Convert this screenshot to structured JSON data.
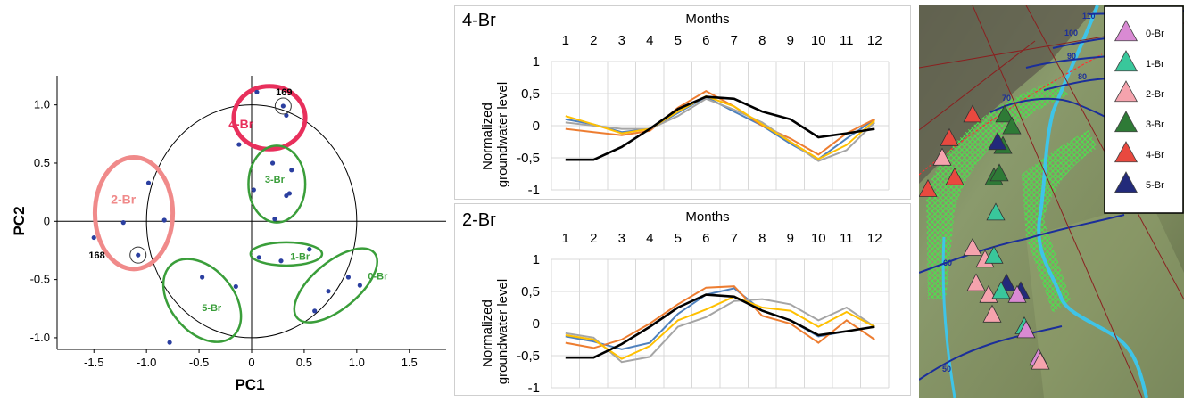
{
  "chart_data": [
    {
      "type": "scatter",
      "title": "",
      "xlabel": "PC1",
      "ylabel": "PC2",
      "xlim": [
        -1.85,
        1.85
      ],
      "ylim": [
        -1.1,
        1.25
      ],
      "x_ticks": [
        -1.5,
        -1.0,
        -0.5,
        0,
        0.5,
        1.0,
        1.5
      ],
      "x_tick_labels": [
        "-1.5",
        "-1.0",
        "-0.5",
        "0",
        "0.5",
        "1.0",
        "1.5"
      ],
      "y_ticks": [
        -1.0,
        -0.5,
        0,
        0.5,
        1.0
      ],
      "y_tick_labels": [
        "-1.0",
        "-0.5",
        "0",
        "0.5",
        "1.0"
      ],
      "unit_circle_radius": 1.0,
      "points": [
        {
          "x": 0.05,
          "y": 1.11
        },
        {
          "x": 0.3,
          "y": 0.99
        },
        {
          "x": 0.33,
          "y": 0.91
        },
        {
          "x": -0.12,
          "y": 0.66
        },
        {
          "x": 0.2,
          "y": 0.5
        },
        {
          "x": 0.38,
          "y": 0.44
        },
        {
          "x": 0.02,
          "y": 0.27
        },
        {
          "x": 0.33,
          "y": 0.22
        },
        {
          "x": 0.36,
          "y": 0.24
        },
        {
          "x": 0.22,
          "y": 0.02
        },
        {
          "x": -1.5,
          "y": -0.14
        },
        {
          "x": -1.22,
          "y": -0.01
        },
        {
          "x": -0.98,
          "y": 0.33
        },
        {
          "x": -0.83,
          "y": 0.01
        },
        {
          "x": -1.08,
          "y": -0.29
        },
        {
          "x": 0.07,
          "y": -0.31
        },
        {
          "x": 0.28,
          "y": -0.34
        },
        {
          "x": 0.55,
          "y": -0.24
        },
        {
          "x": 0.92,
          "y": -0.48
        },
        {
          "x": 1.03,
          "y": -0.55
        },
        {
          "x": 0.73,
          "y": -0.6
        },
        {
          "x": 0.6,
          "y": -0.77
        },
        {
          "x": -0.47,
          "y": -0.48
        },
        {
          "x": -0.15,
          "y": -0.56
        },
        {
          "x": -0.78,
          "y": -1.04
        }
      ],
      "groups": [
        {
          "name": "4-Br",
          "color": "#e8305c",
          "cx": 0.17,
          "cy": 0.89,
          "rx": 0.34,
          "ry": 0.27,
          "rot": 0
        },
        {
          "name": "3-Br",
          "color": "#3a9e3a",
          "cx": 0.24,
          "cy": 0.32,
          "rx": 0.27,
          "ry": 0.33,
          "rot": 0
        },
        {
          "name": "2-Br",
          "color": "#f08a8a",
          "cx": -1.12,
          "cy": 0.07,
          "rx": 0.37,
          "ry": 0.48,
          "rot": 0
        },
        {
          "name": "1-Br",
          "color": "#3a9e3a",
          "cx": 0.33,
          "cy": -0.28,
          "rx": 0.34,
          "ry": 0.1,
          "rot": 0
        },
        {
          "name": "0-Br",
          "color": "#3a9e3a",
          "cx": 0.8,
          "cy": -0.55,
          "rx": 0.48,
          "ry": 0.2,
          "rot": 40
        },
        {
          "name": "5-Br",
          "color": "#3a9e3a",
          "cx": -0.47,
          "cy": -0.68,
          "rx": 0.45,
          "ry": 0.27,
          "rot": -50
        }
      ],
      "annotations": [
        "169",
        "168"
      ]
    },
    {
      "type": "line",
      "title": "4-Br",
      "xlabel": "Months",
      "ylabel": "Normalized groundwater level",
      "x": [
        1,
        2,
        3,
        4,
        5,
        6,
        7,
        8,
        9,
        10,
        11,
        12
      ],
      "ylim": [
        -1,
        1
      ],
      "y_tick_labels": [
        "1",
        "0,5",
        "0",
        "-0,5",
        "-1"
      ],
      "series": [
        {
          "color": "#4f81bd",
          "values": [
            0.1,
            0.02,
            -0.1,
            -0.05,
            0.2,
            0.45,
            0.22,
            0.0,
            -0.28,
            -0.52,
            -0.2,
            0.1
          ]
        },
        {
          "color": "#ed7d31",
          "values": [
            -0.05,
            -0.1,
            -0.15,
            -0.08,
            0.28,
            0.54,
            0.3,
            0.0,
            -0.2,
            -0.45,
            -0.12,
            0.1
          ]
        },
        {
          "color": "#a5a5a5",
          "values": [
            0.05,
            0.0,
            -0.05,
            -0.05,
            0.15,
            0.42,
            0.25,
            0.05,
            -0.25,
            -0.55,
            -0.38,
            0.05
          ]
        },
        {
          "color": "#ffc000",
          "values": [
            0.15,
            0.02,
            -0.12,
            -0.05,
            0.22,
            0.46,
            0.3,
            0.02,
            -0.25,
            -0.52,
            -0.3,
            0.08
          ]
        },
        {
          "color": "#000000",
          "values": [
            -0.53,
            -0.53,
            -0.33,
            -0.05,
            0.26,
            0.45,
            0.42,
            0.22,
            0.1,
            -0.18,
            -0.12,
            -0.05
          ]
        }
      ]
    },
    {
      "type": "line",
      "title": "2-Br",
      "xlabel": "Months",
      "ylabel": "Normalized groundwater level",
      "x": [
        1,
        2,
        3,
        4,
        5,
        6,
        7,
        8,
        9,
        10,
        11,
        12
      ],
      "ylim": [
        -1,
        1
      ],
      "y_tick_labels": [
        "1",
        "0,5",
        "0",
        "-0,5",
        "-1"
      ],
      "series": [
        {
          "color": "#4f81bd",
          "values": [
            -0.2,
            -0.28,
            -0.4,
            -0.3,
            0.15,
            0.45,
            0.55,
            0.2,
            0.05,
            -0.2,
            -0.12,
            -0.05
          ]
        },
        {
          "color": "#ed7d31",
          "values": [
            -0.3,
            -0.38,
            -0.25,
            0.0,
            0.3,
            0.56,
            0.58,
            0.12,
            0.0,
            -0.3,
            0.05,
            -0.25
          ]
        },
        {
          "color": "#a5a5a5",
          "values": [
            -0.15,
            -0.22,
            -0.6,
            -0.52,
            -0.05,
            0.1,
            0.35,
            0.38,
            0.3,
            0.05,
            0.25,
            -0.05
          ]
        },
        {
          "color": "#ffc000",
          "values": [
            -0.18,
            -0.25,
            -0.55,
            -0.35,
            0.05,
            0.22,
            0.42,
            0.25,
            0.2,
            -0.05,
            0.18,
            -0.05
          ]
        },
        {
          "color": "#000000",
          "values": [
            -0.53,
            -0.53,
            -0.32,
            -0.05,
            0.25,
            0.45,
            0.42,
            0.2,
            0.05,
            -0.18,
            -0.12,
            -0.05
          ]
        }
      ]
    }
  ],
  "map": {
    "contour_labels": [
      "110",
      "100",
      "90",
      "80",
      "70",
      "60",
      "50"
    ],
    "legend": [
      {
        "label": "0-Br",
        "color": "#d98ad3"
      },
      {
        "label": "1-Br",
        "color": "#39c79b"
      },
      {
        "label": "2-Br",
        "color": "#f5a3ad"
      },
      {
        "label": "3-Br",
        "color": "#2e7a36"
      },
      {
        "label": "4-Br",
        "color": "#e8493f"
      },
      {
        "label": "5-Br",
        "color": "#222a7a"
      }
    ],
    "markers": [
      {
        "cls": "4-Br",
        "u": 0.3,
        "v": 0.28
      },
      {
        "cls": "4-Br",
        "u": 0.17,
        "v": 0.34
      },
      {
        "cls": "4-Br",
        "u": 0.2,
        "v": 0.44
      },
      {
        "cls": "4-Br",
        "u": 0.05,
        "v": 0.47
      },
      {
        "cls": "2-Br",
        "u": 0.13,
        "v": 0.39
      },
      {
        "cls": "3-Br",
        "u": 0.48,
        "v": 0.28
      },
      {
        "cls": "3-Br",
        "u": 0.52,
        "v": 0.31
      },
      {
        "cls": "3-Br",
        "u": 0.47,
        "v": 0.36
      },
      {
        "cls": "3-Br",
        "u": 0.42,
        "v": 0.44
      },
      {
        "cls": "3-Br",
        "u": 0.45,
        "v": 0.43
      },
      {
        "cls": "5-Br",
        "u": 0.44,
        "v": 0.35
      },
      {
        "cls": "1-Br",
        "u": 0.43,
        "v": 0.53
      },
      {
        "cls": "2-Br",
        "u": 0.3,
        "v": 0.62
      },
      {
        "cls": "2-Br",
        "u": 0.37,
        "v": 0.65
      },
      {
        "cls": "1-Br",
        "u": 0.42,
        "v": 0.64
      },
      {
        "cls": "2-Br",
        "u": 0.32,
        "v": 0.71
      },
      {
        "cls": "2-Br",
        "u": 0.39,
        "v": 0.74
      },
      {
        "cls": "5-Br",
        "u": 0.49,
        "v": 0.71
      },
      {
        "cls": "1-Br",
        "u": 0.46,
        "v": 0.73
      },
      {
        "cls": "2-Br",
        "u": 0.41,
        "v": 0.79
      },
      {
        "cls": "5-Br",
        "u": 0.57,
        "v": 0.73
      },
      {
        "cls": "0-Br",
        "u": 0.55,
        "v": 0.74
      },
      {
        "cls": "1-Br",
        "u": 0.59,
        "v": 0.82
      },
      {
        "cls": "0-Br",
        "u": 0.6,
        "v": 0.83
      },
      {
        "cls": "0-Br",
        "u": 0.67,
        "v": 0.9
      },
      {
        "cls": "2-Br",
        "u": 0.68,
        "v": 0.91
      }
    ]
  }
}
